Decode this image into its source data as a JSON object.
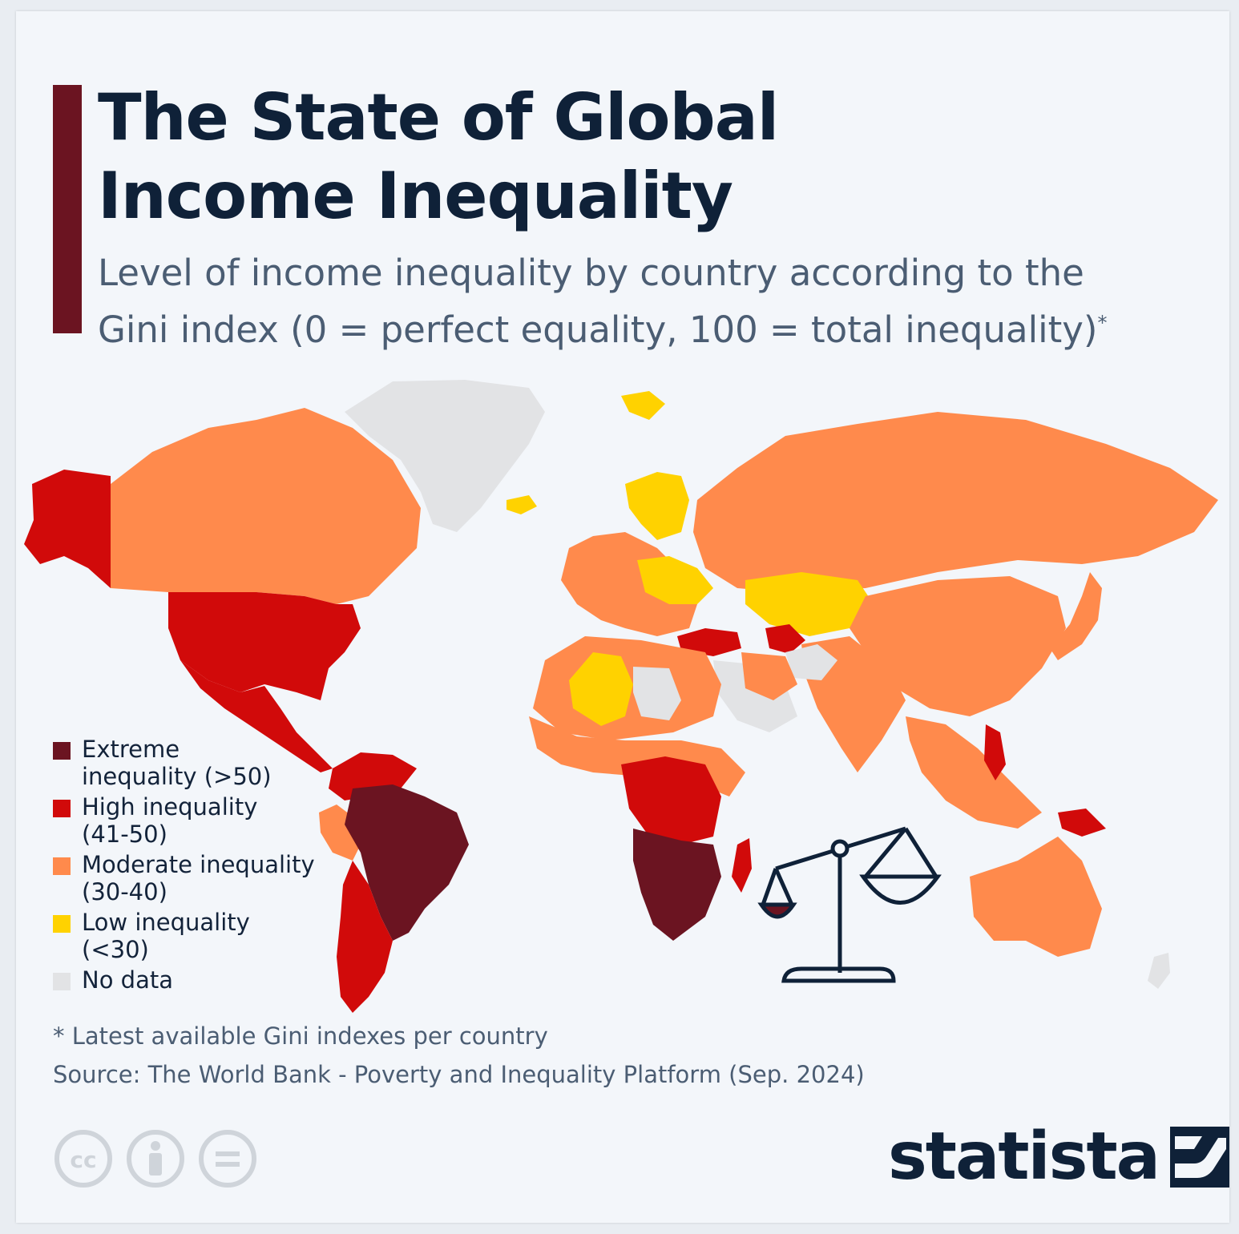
{
  "title": "The State of Global Income Inequality",
  "subtitle": "Level of income inequality by country according to the Gini index (0 = perfect equality, 100 = total inequality)",
  "subtitle_marker": "*",
  "legend": [
    {
      "label": "Extreme\ninequality (>50)",
      "color": "#6b1421",
      "icon": "dark-red-square"
    },
    {
      "label": "High inequality\n(41-50)",
      "color": "#d10a0a",
      "icon": "red-square"
    },
    {
      "label": "Moderate inequality\n(30-40)",
      "color": "#ff8a4c",
      "icon": "orange-square"
    },
    {
      "label": "Low inequality\n(<30)",
      "color": "#ffd200",
      "icon": "yellow-square"
    },
    {
      "label": "No data",
      "color": "#e2e3e5",
      "icon": "grey-square"
    }
  ],
  "footnote": "* Latest available Gini indexes per country",
  "source": "Source: The World Bank - Poverty and Inequality Platform (Sep. 2024)",
  "brand": "statista",
  "icons": [
    "creative-commons-icon",
    "attribution-icon",
    "no-derivatives-icon",
    "balance-scale-icon",
    "statista-logo-icon"
  ],
  "colors": {
    "accent": "#6b1421",
    "title": "#0f2138",
    "text": "#4b5d73",
    "background": "#f3f6fa"
  }
}
